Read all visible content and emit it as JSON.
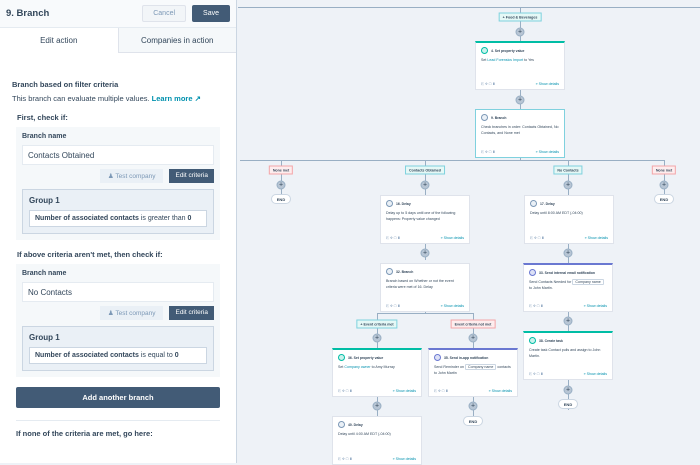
{
  "panel": {
    "title": "9. Branch",
    "cancel": "Cancel",
    "save": "Save",
    "tabs": [
      "Edit action",
      "Companies in action"
    ],
    "heading": "Branch based on filter criteria",
    "subtitle": "This branch can evaluate multiple values.",
    "learn_more": "Learn more",
    "branches": [
      {
        "label": "First, check if:",
        "name_label": "Branch name",
        "name": "Contacts Obtained",
        "test": "Test company",
        "edit": "Edit criteria",
        "group": "Group 1",
        "crit_prop": "Number of associated contacts",
        "crit_op": "is greater than",
        "crit_val": "0"
      },
      {
        "label": "If above criteria aren't met, then check if:",
        "name_label": "Branch name",
        "name": "No Contacts",
        "test": "Test company",
        "edit": "Edit criteria",
        "group": "Group 1",
        "crit_prop": "Number of associated contacts",
        "crit_op": "is equal to",
        "crit_val": "0"
      }
    ],
    "add_branch": "Add another branch",
    "footer": "If none of the criteria are met, go here:"
  },
  "canvas": {
    "show_details": "Show details",
    "end": "END",
    "tags": [
      {
        "text": "+ Food & Beverages",
        "color": "teal"
      },
      {
        "text": "None met",
        "color": "red"
      },
      {
        "text": "Contacts Obtained",
        "color": "teal"
      },
      {
        "text": "No Contacts",
        "color": "teal"
      },
      {
        "text": "None met",
        "color": "red"
      },
      {
        "text": "+ Event criteria met",
        "color": "teal"
      },
      {
        "text": "Event criteria not met",
        "color": "red"
      }
    ],
    "cards": [
      {
        "title": "4. Set property value",
        "icon": "property-icon",
        "accent": "green",
        "body": [
          [
            "Set ",
            ""
          ],
          [
            "Lead Forensics Import",
            "lk"
          ],
          [
            " to ",
            ""
          ],
          [
            "Yes",
            "b"
          ]
        ]
      },
      {
        "title": "9. Branch",
        "icon": "branch-icon",
        "accent": "sel",
        "body": [
          [
            "Check branches in order: ",
            ""
          ],
          [
            "Contacts Obtained",
            "b"
          ],
          [
            ", ",
            ""
          ],
          [
            "No Contacts",
            "b"
          ],
          [
            ", and ",
            ""
          ],
          [
            "None met",
            "b"
          ]
        ]
      },
      {
        "title": "16. Delay",
        "icon": "delay-icon",
        "accent": "",
        "body": [
          [
            "Delay up to ",
            ""
          ],
          [
            "5 days",
            "b"
          ],
          [
            " until one of the following happens: ",
            ""
          ],
          [
            "Property value changed",
            "b"
          ]
        ]
      },
      {
        "title": "17. Delay",
        "icon": "delay-icon",
        "accent": "",
        "body": [
          [
            "Delay until ",
            ""
          ],
          [
            "8:00 AM EDT (-04:00)",
            "b"
          ]
        ]
      },
      {
        "title": "32. Branch",
        "icon": "branch-icon",
        "accent": "",
        "body": [
          [
            "Branch based on ",
            ""
          ],
          [
            "Whether or not the event criteria were met",
            "b"
          ],
          [
            " of ",
            ""
          ],
          [
            "16. Delay",
            "b"
          ]
        ]
      },
      {
        "title": "33. Send internal email notification",
        "icon": "email-icon",
        "accent": "purple",
        "body": [
          [
            "Send ",
            ""
          ],
          [
            "Contacts Needed for",
            "b"
          ],
          [
            " ",
            ""
          ],
          [
            "Company name",
            "chip"
          ],
          [
            " to ",
            ""
          ],
          [
            "John Martin",
            "b"
          ],
          [
            ".",
            ""
          ]
        ]
      },
      {
        "title": "38. Create task",
        "icon": "task-icon",
        "accent": "green",
        "body": [
          [
            "Create task ",
            ""
          ],
          [
            "Contact pulls",
            "b"
          ],
          [
            " and assign to ",
            ""
          ],
          [
            "John Martin",
            "b"
          ],
          [
            ".",
            ""
          ]
        ]
      },
      {
        "title": "36. Set property value",
        "icon": "property-icon",
        "accent": "green",
        "body": [
          [
            "Set ",
            ""
          ],
          [
            "Company owner",
            "lk"
          ],
          [
            " to ",
            ""
          ],
          [
            "Amy Murray",
            "b"
          ]
        ]
      },
      {
        "title": "35. Send in-app notification",
        "icon": "notification-icon",
        "accent": "purple",
        "body": [
          [
            "Send ",
            ""
          ],
          [
            "Reminder",
            "b"
          ],
          [
            " on ",
            ""
          ],
          [
            "Company name",
            "chip"
          ],
          [
            " contacts",
            "b"
          ],
          [
            " to ",
            ""
          ],
          [
            "John Martin",
            "b"
          ]
        ]
      },
      {
        "title": "40. Delay",
        "icon": "delay-icon",
        "accent": "",
        "body": [
          [
            "Delay until ",
            ""
          ],
          [
            "4:00 AM EDT (-04:00)",
            "b"
          ]
        ]
      }
    ]
  }
}
